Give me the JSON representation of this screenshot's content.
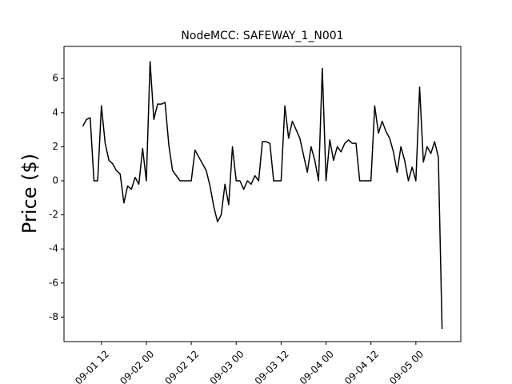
{
  "chart_data": {
    "type": "line",
    "title": "NodeMCC: SAFEWAY_1_N001",
    "y_label": "Price ($)",
    "x": [
      "09-01 07",
      "09-01 08",
      "09-01 09",
      "09-01 10",
      "09-01 11",
      "09-01 12",
      "09-01 13",
      "09-01 14",
      "09-01 15",
      "09-01 16",
      "09-01 17",
      "09-01 18",
      "09-01 19",
      "09-01 20",
      "09-01 21",
      "09-01 22",
      "09-01 23",
      "09-02 00",
      "09-02 01",
      "09-02 02",
      "09-02 03",
      "09-02 04",
      "09-02 05",
      "09-02 06",
      "09-02 07",
      "09-02 08",
      "09-02 09",
      "09-02 10",
      "09-02 11",
      "09-02 12",
      "09-02 13",
      "09-02 14",
      "09-02 15",
      "09-02 16",
      "09-02 17",
      "09-02 18",
      "09-02 19",
      "09-02 20",
      "09-02 21",
      "09-02 22",
      "09-02 23",
      "09-03 00",
      "09-03 01",
      "09-03 02",
      "09-03 03",
      "09-03 04",
      "09-03 05",
      "09-03 06",
      "09-03 07",
      "09-03 08",
      "09-03 09",
      "09-03 10",
      "09-03 11",
      "09-03 12",
      "09-03 13",
      "09-03 14",
      "09-03 15",
      "09-03 16",
      "09-03 17",
      "09-03 18",
      "09-03 19",
      "09-03 20",
      "09-03 21",
      "09-03 22",
      "09-03 23",
      "09-04 00",
      "09-04 01",
      "09-04 02",
      "09-04 03",
      "09-04 04",
      "09-04 05",
      "09-04 06",
      "09-04 07",
      "09-04 08",
      "09-04 09",
      "09-04 10",
      "09-04 11",
      "09-04 12",
      "09-04 13",
      "09-04 14",
      "09-04 15",
      "09-04 16",
      "09-04 17",
      "09-04 18",
      "09-04 19",
      "09-04 20",
      "09-04 21",
      "09-04 22",
      "09-04 23",
      "09-05 00",
      "09-05 01",
      "09-05 02",
      "09-05 03",
      "09-05 04",
      "09-05 05",
      "09-05 06",
      "09-05 07"
    ],
    "series": [
      {
        "name": "SAFEWAY_1_N001",
        "color": "#000000",
        "values": [
          3.2,
          3.6,
          3.7,
          0,
          0,
          4.4,
          2.2,
          1.2,
          1.0,
          0.6,
          0.4,
          -1.3,
          -0.3,
          -0.5,
          0.2,
          -0.2,
          1.9,
          0,
          7.0,
          3.6,
          4.5,
          4.5,
          4.6,
          2.1,
          0.6,
          0.3,
          0,
          0,
          0,
          0,
          1.8,
          1.4,
          1.0,
          0.6,
          -0.3,
          -1.5,
          -2.4,
          -2.0,
          -0.2,
          -1.4,
          2.0,
          0,
          0,
          -0.5,
          0,
          -0.2,
          0.3,
          0,
          2.3,
          2.3,
          2.2,
          0,
          0,
          0,
          4.4,
          2.5,
          3.5,
          3.0,
          2.5,
          1.5,
          0.5,
          2.0,
          1.2,
          0,
          6.6,
          0,
          2.4,
          1.2,
          2.0,
          1.7,
          2.2,
          2.4,
          2.2,
          2.2,
          0,
          0,
          0,
          0,
          4.4,
          2.8,
          3.5,
          2.9,
          2.5,
          1.7,
          0.5,
          2.0,
          1.2,
          0,
          0.8,
          0,
          5.5,
          1.1,
          2.0,
          1.6,
          2.3,
          1.4,
          -8.7
        ]
      }
    ],
    "xlim": [
      "09-01 02",
      "09-05 12"
    ],
    "xticks": [
      "09-01 12",
      "09-02 00",
      "09-02 12",
      "09-03 00",
      "09-03 12",
      "09-04 00",
      "09-04 12",
      "09-05 00"
    ],
    "ylim": [
      -9.44,
      7.89
    ],
    "yticks": [
      -8,
      -6,
      -4,
      -2,
      0,
      2,
      4,
      6
    ]
  }
}
